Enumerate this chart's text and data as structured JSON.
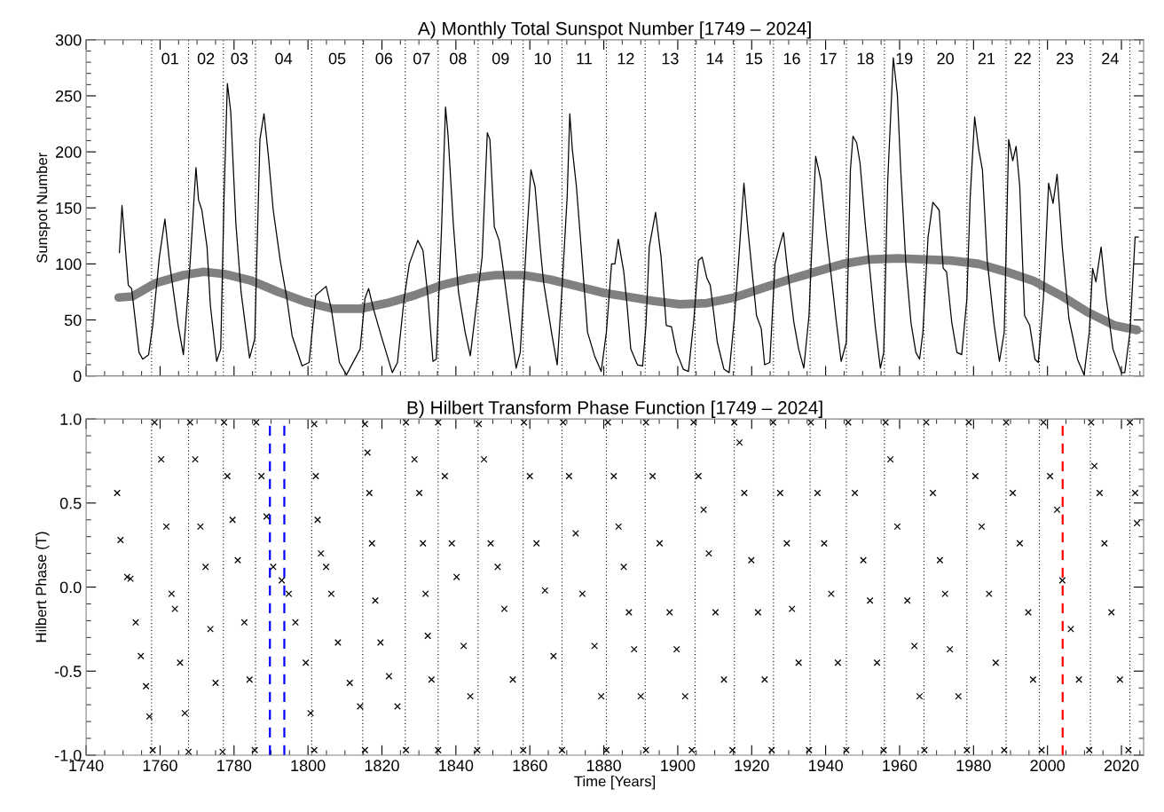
{
  "chart_data": [
    {
      "type": "line",
      "title": "A) Monthly Total Sunspot Number [1749 – 2024]",
      "ylabel": "Sunspot Number",
      "xlim": [
        1740,
        2026
      ],
      "xticks": [
        1740,
        1760,
        1780,
        1800,
        1820,
        1840,
        1860,
        1880,
        1900,
        1920,
        1940,
        1960,
        1980,
        2000,
        2020
      ],
      "ylim": [
        0,
        300
      ],
      "yticks": [
        0,
        50,
        100,
        150,
        200,
        250,
        300
      ],
      "tick_labels": "y",
      "grid": false,
      "series": [
        {
          "color": "#000000",
          "x": [
            1749.0,
            1749.7,
            1751.4,
            1752.3,
            1754.3,
            1755.3,
            1756.9,
            1758.0,
            1759.8,
            1761.3,
            1762.6,
            1763.5,
            1764.9,
            1766.3,
            1768.1,
            1769.7,
            1770.4,
            1771.3,
            1772.7,
            1773.6,
            1775.3,
            1776.4,
            1777.3,
            1778.2,
            1779.1,
            1780.5,
            1781.9,
            1784.2,
            1785.6,
            1787.0,
            1788.1,
            1789.3,
            1790.6,
            1792.5,
            1794.3,
            1795.7,
            1798.4,
            1800.3,
            1802.1,
            1804.9,
            1806.3,
            1808.5,
            1810.4,
            1814.1,
            1815.4,
            1816.4,
            1817.7,
            1819.6,
            1822.8,
            1824.2,
            1826.0,
            1827.4,
            1829.7,
            1831.1,
            1832.4,
            1833.8,
            1834.7,
            1836.1,
            1837.2,
            1837.9,
            1839.3,
            1840.7,
            1842.5,
            1843.9,
            1846.2,
            1847.1,
            1848.5,
            1849.2,
            1850.4,
            1851.7,
            1852.6,
            1855.0,
            1856.3,
            1857.4,
            1859.1,
            1860.3,
            1861.4,
            1862.8,
            1863.7,
            1866.0,
            1867.4,
            1868.7,
            1870.1,
            1870.8,
            1871.5,
            1872.6,
            1873.8,
            1875.6,
            1877.5,
            1879.3,
            1880.7,
            1882.1,
            1883.0,
            1883.9,
            1885.4,
            1886.3,
            1887.3,
            1889.1,
            1890.5,
            1891.4,
            1892.3,
            1894.0,
            1895.5,
            1896.9,
            1898.3,
            1899.7,
            1901.5,
            1902.9,
            1904.3,
            1905.6,
            1906.6,
            1907.9,
            1908.8,
            1910.7,
            1912.5,
            1913.9,
            1915.3,
            1916.4,
            1917.9,
            1919.0,
            1919.9,
            1921.3,
            1922.6,
            1923.5,
            1924.9,
            1926.3,
            1927.7,
            1928.6,
            1929.5,
            1931.4,
            1932.7,
            1934.1,
            1935.5,
            1937.3,
            1938.7,
            1940.1,
            1941.9,
            1942.8,
            1944.2,
            1945.6,
            1946.7,
            1947.4,
            1948.4,
            1949.3,
            1950.7,
            1952.0,
            1953.4,
            1954.8,
            1955.7,
            1956.8,
            1958.3,
            1959.4,
            1960.3,
            1961.7,
            1963.1,
            1964.4,
            1965.4,
            1966.3,
            1967.7,
            1969.0,
            1970.7,
            1971.8,
            1972.7,
            1974.1,
            1975.5,
            1976.8,
            1978.2,
            1979.1,
            1980.3,
            1981.4,
            1982.4,
            1983.7,
            1985.6,
            1987.0,
            1988.3,
            1989.5,
            1990.6,
            1991.5,
            1992.5,
            1993.8,
            1995.2,
            1996.6,
            1997.5,
            1998.9,
            2000.3,
            2001.5,
            2002.6,
            2004.0,
            2005.8,
            2008.1,
            2009.9,
            2011.3,
            2012.2,
            2013.1,
            2014.5,
            2015.9,
            2017.7,
            2020.0,
            2020.9,
            2022.3,
            2023.7,
            2024.6
          ],
          "values": [
            110,
            152,
            81,
            78,
            21,
            15,
            19,
            45,
            106,
            140,
            100,
            78,
            45,
            19,
            100,
            186,
            157,
            148,
            115,
            63,
            13,
            24,
            160,
            261,
            236,
            136,
            75,
            16,
            33,
            211,
            234,
            196,
            148,
            103,
            69,
            36,
            9,
            12,
            72,
            80,
            60,
            12,
            1,
            24,
            69,
            78,
            60,
            38,
            3,
            12,
            69,
            100,
            121,
            112,
            72,
            13,
            15,
            130,
            240,
            214,
            136,
            75,
            39,
            18,
            81,
            106,
            217,
            211,
            133,
            121,
            100,
            39,
            7,
            21,
            121,
            184,
            169,
            115,
            84,
            36,
            10,
            78,
            160,
            234,
            202,
            169,
            118,
            39,
            18,
            4,
            39,
            100,
            100,
            122,
            93,
            63,
            24,
            10,
            9,
            45,
            115,
            146,
            106,
            45,
            44,
            21,
            6,
            4,
            48,
            103,
            106,
            87,
            81,
            30,
            6,
            3,
            51,
            100,
            172,
            130,
            100,
            54,
            42,
            10,
            12,
            100,
            118,
            128,
            100,
            48,
            24,
            7,
            54,
            196,
            175,
            130,
            78,
            51,
            13,
            30,
            184,
            214,
            208,
            190,
            136,
            93,
            45,
            7,
            21,
            175,
            284,
            251,
            184,
            100,
            47,
            21,
            15,
            39,
            124,
            155,
            148,
            96,
            93,
            48,
            21,
            19,
            69,
            160,
            231,
            202,
            184,
            103,
            45,
            13,
            39,
            211,
            192,
            205,
            169,
            54,
            45,
            15,
            12,
            69,
            172,
            154,
            180,
            115,
            51,
            15,
            1,
            39,
            96,
            84,
            115,
            69,
            24,
            3,
            3,
            39,
            124,
            124
          ]
        },
        {
          "color": "#808080",
          "x": [
            1748.8,
            1752.5,
            1758.9,
            1766.3,
            1771.8,
            1777.3,
            1784.7,
            1792.0,
            1799.4,
            1806.7,
            1814.1,
            1821.4,
            1828.8,
            1836.1,
            1843.5,
            1850.8,
            1858.2,
            1865.5,
            1872.9,
            1880.2,
            1885.9,
            1893.2,
            1900.6,
            1907.9,
            1915.3,
            1922.6,
            1930.0,
            1937.3,
            1944.7,
            1952.0,
            1959.4,
            1966.7,
            1974.1,
            1981.4,
            1988.8,
            1996.1,
            2003.5,
            2010.8,
            2018.2,
            2024.2
          ],
          "values": [
            70,
            71,
            83,
            90,
            93,
            91,
            85,
            75,
            66,
            60,
            60,
            65,
            72,
            81,
            87,
            90,
            90,
            86,
            80,
            74,
            71,
            67,
            64,
            65,
            70,
            78,
            86,
            93,
            100,
            104,
            105,
            104,
            103,
            100,
            93,
            85,
            72,
            57,
            45,
            41
          ]
        }
      ],
      "ref_lines": [
        {
          "axis": "x",
          "value": 1757.7,
          "color": "#000000",
          "line_style": "dotted"
        },
        {
          "axis": "x",
          "value": 1767.7,
          "color": "#000000",
          "line_style": "dotted"
        },
        {
          "axis": "x",
          "value": 1777.1,
          "color": "#000000",
          "line_style": "dotted"
        },
        {
          "axis": "x",
          "value": 1785.8,
          "color": "#000000",
          "line_style": "dotted"
        },
        {
          "axis": "x",
          "value": 1801.0,
          "color": "#000000",
          "line_style": "dotted"
        },
        {
          "axis": "x",
          "value": 1814.8,
          "color": "#000000",
          "line_style": "dotted"
        },
        {
          "axis": "x",
          "value": 1826.3,
          "color": "#000000",
          "line_style": "dotted"
        },
        {
          "axis": "x",
          "value": 1835.2,
          "color": "#000000",
          "line_style": "dotted"
        },
        {
          "axis": "x",
          "value": 1846.0,
          "color": "#000000",
          "line_style": "dotted"
        },
        {
          "axis": "x",
          "value": 1858.2,
          "color": "#000000",
          "line_style": "dotted"
        },
        {
          "axis": "x",
          "value": 1868.7,
          "color": "#000000",
          "line_style": "dotted"
        },
        {
          "axis": "x",
          "value": 1880.7,
          "color": "#000000",
          "line_style": "dotted"
        },
        {
          "axis": "x",
          "value": 1891.2,
          "color": "#000000",
          "line_style": "dotted"
        },
        {
          "axis": "x",
          "value": 1904.7,
          "color": "#000000",
          "line_style": "dotted"
        },
        {
          "axis": "x",
          "value": 1915.3,
          "color": "#000000",
          "line_style": "dotted"
        },
        {
          "axis": "x",
          "value": 1925.9,
          "color": "#000000",
          "line_style": "dotted"
        },
        {
          "axis": "x",
          "value": 1935.8,
          "color": "#000000",
          "line_style": "dotted"
        },
        {
          "axis": "x",
          "value": 1945.6,
          "color": "#000000",
          "line_style": "dotted"
        },
        {
          "axis": "x",
          "value": 1955.9,
          "color": "#000000",
          "line_style": "dotted"
        },
        {
          "axis": "x",
          "value": 1966.6,
          "color": "#000000",
          "line_style": "dotted"
        },
        {
          "axis": "x",
          "value": 1978.2,
          "color": "#000000",
          "line_style": "dotted"
        },
        {
          "axis": "x",
          "value": 1988.8,
          "color": "#000000",
          "line_style": "dotted"
        },
        {
          "axis": "x",
          "value": 1997.8,
          "color": "#000000",
          "line_style": "dotted"
        },
        {
          "axis": "x",
          "value": 2011.6,
          "color": "#000000",
          "line_style": "dotted"
        },
        {
          "axis": "x",
          "value": 2022.3,
          "color": "#000000",
          "line_style": "dotted"
        }
      ],
      "annotations": [
        "01",
        "02",
        "03",
        "04",
        "05",
        "06",
        "07",
        "08",
        "09",
        "10",
        "11",
        "12",
        "13",
        "14",
        "15",
        "16",
        "17",
        "18",
        "19",
        "20",
        "21",
        "22",
        "23",
        "24"
      ]
    },
    {
      "type": "scatter",
      "title": "B) Hilbert Transform Phase Function [1749 – 2024]",
      "xlabel": "Time [Years]",
      "ylabel": "Hilbert Phase (T)",
      "marker": "cross",
      "grid": false,
      "xlim": [
        1740,
        2026
      ],
      "xticks": [
        1740,
        1760,
        1780,
        1800,
        1820,
        1840,
        1860,
        1880,
        1900,
        1920,
        1940,
        1960,
        1980,
        2000,
        2020
      ],
      "ylim": [
        -1.0,
        1.0
      ],
      "yticks": [
        {
          "value": -1.0,
          "label": "-1.0"
        },
        {
          "value": -0.5,
          "label": "-0.5"
        },
        {
          "value": 0,
          "label": "0.0"
        },
        {
          "value": 0.5,
          "label": "0.5"
        },
        {
          "value": 1.0,
          "label": "1.0"
        }
      ],
      "series": [
        {
          "color": "#000000",
          "x": [
            1748.4,
            1749.3,
            1751.1,
            1752.0,
            1753.4,
            1754.8,
            1756.2,
            1757.1,
            1758.0,
            1758.5,
            1760.3,
            1761.7,
            1763.1,
            1764.0,
            1765.4,
            1766.7,
            1767.7,
            1768.1,
            1769.5,
            1770.9,
            1772.3,
            1773.6,
            1775.0,
            1776.9,
            1777.3,
            1778.2,
            1779.6,
            1781.0,
            1782.8,
            1784.2,
            1785.6,
            1786.0,
            1787.4,
            1788.8,
            1790.6,
            1792.9,
            1794.8,
            1796.6,
            1799.4,
            1800.7,
            1801.7,
            1801.7,
            1802.1,
            1802.6,
            1803.5,
            1804.9,
            1806.3,
            1808.1,
            1811.3,
            1814.1,
            1815.4,
            1815.4,
            1816.1,
            1816.6,
            1817.3,
            1818.2,
            1819.6,
            1821.9,
            1824.2,
            1826.5,
            1826.5,
            1828.8,
            1830.1,
            1831.1,
            1831.8,
            1832.4,
            1833.4,
            1835.2,
            1835.2,
            1837.0,
            1838.9,
            1840.2,
            1842.1,
            1843.9,
            1845.8,
            1846.2,
            1847.6,
            1849.4,
            1851.3,
            1853.1,
            1855.4,
            1858.2,
            1858.4,
            1860.0,
            1861.8,
            1864.1,
            1866.4,
            1868.7,
            1869.0,
            1870.6,
            1872.4,
            1874.2,
            1877.5,
            1879.3,
            1880.7,
            1881.1,
            1882.7,
            1884.0,
            1885.4,
            1886.8,
            1888.2,
            1890.0,
            1891.4,
            1891.4,
            1893.2,
            1895.1,
            1897.8,
            1899.7,
            1902.0,
            1903.8,
            1904.3,
            1905.6,
            1907.0,
            1908.4,
            1910.2,
            1912.5,
            1914.8,
            1915.3,
            1916.7,
            1918.0,
            1919.9,
            1921.7,
            1923.5,
            1925.4,
            1925.8,
            1927.7,
            1929.5,
            1930.9,
            1932.7,
            1935.5,
            1936.0,
            1937.8,
            1939.6,
            1941.5,
            1943.3,
            1945.6,
            1946.1,
            1947.9,
            1950.2,
            1952.0,
            1953.9,
            1955.7,
            1956.2,
            1957.5,
            1959.4,
            1962.1,
            1964.0,
            1965.4,
            1966.7,
            1967.2,
            1969.0,
            1970.9,
            1972.3,
            1973.6,
            1975.9,
            1978.2,
            1978.7,
            1980.5,
            1982.2,
            1984.2,
            1986.0,
            1988.3,
            1988.8,
            1990.6,
            1992.5,
            1994.8,
            1996.1,
            1998.4,
            1998.9,
            2000.7,
            2002.6,
            2004.0,
            2006.3,
            2008.5,
            2011.3,
            2011.8,
            2012.7,
            2014.1,
            2015.4,
            2017.3,
            2019.6,
            2021.9,
            2022.3,
            2023.7,
            2024.2
          ],
          "values": [
            0.56,
            0.28,
            0.06,
            0.05,
            -0.21,
            -0.41,
            -0.59,
            -0.77,
            -0.97,
            0.98,
            0.76,
            0.36,
            -0.04,
            -0.13,
            -0.45,
            -0.75,
            -0.98,
            0.98,
            0.76,
            0.36,
            0.12,
            -0.25,
            -0.57,
            -0.98,
            0.98,
            0.66,
            0.4,
            0.16,
            -0.21,
            -0.55,
            -0.97,
            0.98,
            0.66,
            0.42,
            0.12,
            0.04,
            -0.04,
            -0.21,
            -0.45,
            -0.75,
            -0.97,
            0.97,
            0.66,
            0.4,
            0.2,
            0.12,
            -0.04,
            -0.33,
            -0.57,
            -0.71,
            -0.97,
            0.97,
            0.8,
            0.56,
            0.26,
            -0.08,
            -0.33,
            -0.53,
            -0.71,
            -0.97,
            0.98,
            0.76,
            0.56,
            0.26,
            -0.04,
            -0.29,
            -0.55,
            -0.97,
            0.98,
            0.66,
            0.26,
            0.06,
            -0.35,
            -0.65,
            -0.97,
            0.97,
            0.76,
            0.26,
            0.12,
            -0.13,
            -0.55,
            -0.97,
            0.98,
            0.66,
            0.26,
            -0.02,
            -0.41,
            -0.97,
            0.98,
            0.66,
            0.32,
            -0.04,
            -0.35,
            -0.65,
            -0.97,
            0.98,
            0.66,
            0.36,
            0.12,
            -0.15,
            -0.37,
            -0.65,
            -0.97,
            0.98,
            0.66,
            0.26,
            -0.15,
            -0.37,
            -0.65,
            -0.97,
            0.98,
            0.66,
            0.46,
            0.2,
            -0.15,
            -0.55,
            -0.97,
            0.98,
            0.86,
            0.56,
            0.16,
            -0.15,
            -0.55,
            -0.97,
            0.98,
            0.56,
            0.26,
            -0.13,
            -0.45,
            -0.97,
            0.98,
            0.56,
            0.26,
            -0.04,
            -0.45,
            -0.97,
            0.98,
            0.56,
            0.16,
            -0.08,
            -0.45,
            -0.97,
            0.98,
            0.76,
            0.36,
            -0.08,
            -0.35,
            -0.65,
            -0.97,
            0.98,
            0.56,
            0.16,
            -0.04,
            -0.37,
            -0.65,
            -0.97,
            0.98,
            0.66,
            0.36,
            -0.04,
            -0.45,
            -0.97,
            0.98,
            0.56,
            0.26,
            -0.15,
            -0.55,
            -0.97,
            0.98,
            0.66,
            0.46,
            0.04,
            -0.25,
            -0.55,
            -0.97,
            0.98,
            0.72,
            0.56,
            0.26,
            -0.15,
            -0.55,
            -0.97,
            0.98,
            0.56,
            0.38
          ]
        }
      ],
      "ref_lines": [
        {
          "axis": "x",
          "value": 1757.7,
          "color": "#000000",
          "line_style": "dotted"
        },
        {
          "axis": "x",
          "value": 1767.7,
          "color": "#000000",
          "line_style": "dotted"
        },
        {
          "axis": "x",
          "value": 1777.1,
          "color": "#000000",
          "line_style": "dotted"
        },
        {
          "axis": "x",
          "value": 1785.8,
          "color": "#000000",
          "line_style": "dotted"
        },
        {
          "axis": "x",
          "value": 1801.0,
          "color": "#000000",
          "line_style": "dotted"
        },
        {
          "axis": "x",
          "value": 1814.8,
          "color": "#000000",
          "line_style": "dotted"
        },
        {
          "axis": "x",
          "value": 1826.3,
          "color": "#000000",
          "line_style": "dotted"
        },
        {
          "axis": "x",
          "value": 1835.2,
          "color": "#000000",
          "line_style": "dotted"
        },
        {
          "axis": "x",
          "value": 1846.0,
          "color": "#000000",
          "line_style": "dotted"
        },
        {
          "axis": "x",
          "value": 1858.2,
          "color": "#000000",
          "line_style": "dotted"
        },
        {
          "axis": "x",
          "value": 1868.7,
          "color": "#000000",
          "line_style": "dotted"
        },
        {
          "axis": "x",
          "value": 1880.7,
          "color": "#000000",
          "line_style": "dotted"
        },
        {
          "axis": "x",
          "value": 1891.2,
          "color": "#000000",
          "line_style": "dotted"
        },
        {
          "axis": "x",
          "value": 1904.7,
          "color": "#000000",
          "line_style": "dotted"
        },
        {
          "axis": "x",
          "value": 1915.3,
          "color": "#000000",
          "line_style": "dotted"
        },
        {
          "axis": "x",
          "value": 1925.9,
          "color": "#000000",
          "line_style": "dotted"
        },
        {
          "axis": "x",
          "value": 1935.8,
          "color": "#000000",
          "line_style": "dotted"
        },
        {
          "axis": "x",
          "value": 1945.6,
          "color": "#000000",
          "line_style": "dotted"
        },
        {
          "axis": "x",
          "value": 1955.9,
          "color": "#000000",
          "line_style": "dotted"
        },
        {
          "axis": "x",
          "value": 1966.6,
          "color": "#000000",
          "line_style": "dotted"
        },
        {
          "axis": "x",
          "value": 1978.2,
          "color": "#000000",
          "line_style": "dotted"
        },
        {
          "axis": "x",
          "value": 1988.8,
          "color": "#000000",
          "line_style": "dotted"
        },
        {
          "axis": "x",
          "value": 1997.8,
          "color": "#000000",
          "line_style": "dotted"
        },
        {
          "axis": "x",
          "value": 2011.6,
          "color": "#000000",
          "line_style": "dotted"
        },
        {
          "axis": "x",
          "value": 2022.3,
          "color": "#000000",
          "line_style": "dotted"
        },
        {
          "axis": "x",
          "value": 1789.7,
          "color": "#0000ff",
          "line_style": "dashed"
        },
        {
          "axis": "x",
          "value": 1793.6,
          "color": "#0000ff",
          "line_style": "dashed"
        },
        {
          "axis": "x",
          "value": 2004.1,
          "color": "#ff0000",
          "line_style": "dashed"
        }
      ]
    }
  ]
}
